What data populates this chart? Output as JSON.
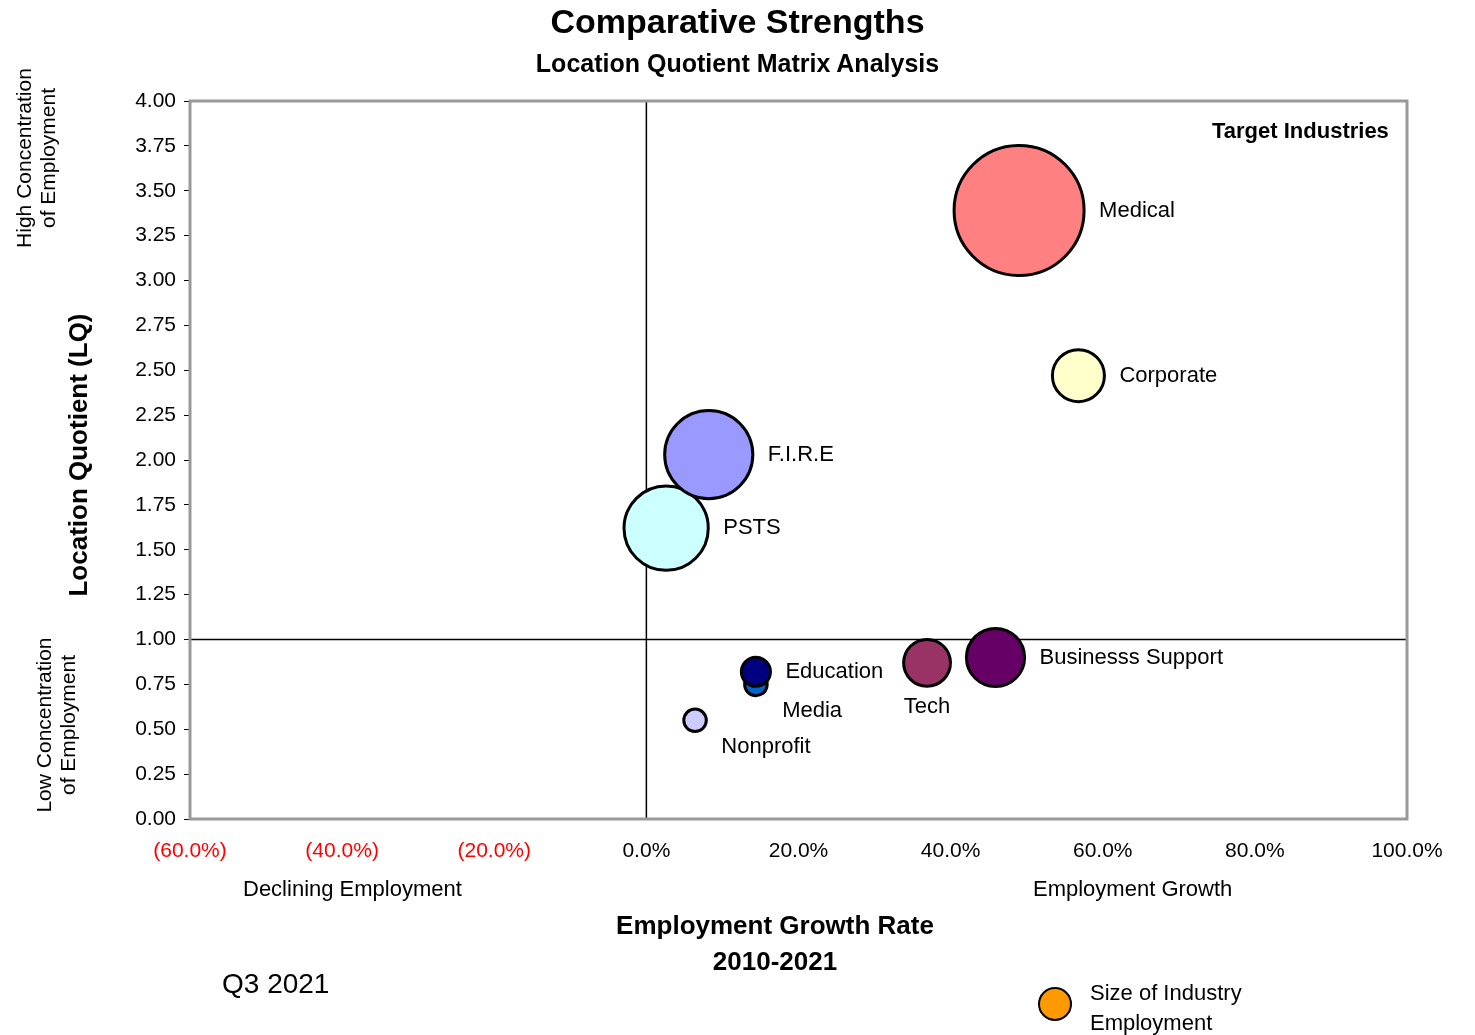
{
  "chart_data": {
    "type": "bubble",
    "title": "Comparative Strengths",
    "subtitle": "Location Quotient Matrix Analysis",
    "xlabel": "Employment Growth Rate\n2010-2021",
    "ylabel": "Location Quotient (LQ)",
    "xlim": [
      -60,
      100
    ],
    "xticks": [
      {
        "value": -60,
        "label": "(60.0%)"
      },
      {
        "value": -40,
        "label": "(40.0%)"
      },
      {
        "value": -20,
        "label": "(20.0%)"
      },
      {
        "value": 0,
        "label": "0.0%"
      },
      {
        "value": 20,
        "label": "20.0%"
      },
      {
        "value": 40,
        "label": "40.0%"
      },
      {
        "value": 60,
        "label": "60.0%"
      },
      {
        "value": 80,
        "label": "80.0%"
      },
      {
        "value": 100,
        "label": "100.0%"
      }
    ],
    "ylim": [
      0,
      4
    ],
    "yticks": [
      {
        "value": 0,
        "label": "0.00"
      },
      {
        "value": 0.25,
        "label": "0.25"
      },
      {
        "value": 0.5,
        "label": "0.50"
      },
      {
        "value": 0.75,
        "label": "0.75"
      },
      {
        "value": 1,
        "label": "1.00"
      },
      {
        "value": 1.25,
        "label": "1.25"
      },
      {
        "value": 1.5,
        "label": "1.50"
      },
      {
        "value": 1.75,
        "label": "1.75"
      },
      {
        "value": 2,
        "label": "2.00"
      },
      {
        "value": 2.25,
        "label": "2.25"
      },
      {
        "value": 2.5,
        "label": "2.50"
      },
      {
        "value": 2.75,
        "label": "2.75"
      },
      {
        "value": 3,
        "label": "3.00"
      },
      {
        "value": 3.25,
        "label": "3.25"
      },
      {
        "value": 3.5,
        "label": "3.50"
      },
      {
        "value": 3.75,
        "label": "3.75"
      },
      {
        "value": 4,
        "label": "4.00"
      }
    ],
    "grid": false,
    "legend": false,
    "ref_lines": [
      {
        "axis": "x",
        "value": 0,
        "color": "#000000"
      },
      {
        "axis": "y",
        "value": 1,
        "color": "#000000"
      }
    ],
    "series": [
      {
        "name": "Medical",
        "color": "#ff8080",
        "x": [
          49
        ],
        "values": [
          3.39
        ],
        "sizes": [
          1
        ]
      },
      {
        "name": "Corporate",
        "color": "#ffffcc",
        "x": [
          56.8
        ],
        "values": [
          2.47
        ],
        "sizes": [
          0.16
        ]
      },
      {
        "name": "F.I.R.E",
        "color": "#9999ff",
        "x": [
          8.2
        ],
        "values": [
          2.03
        ],
        "sizes": [
          0.46
        ]
      },
      {
        "name": "PSTS",
        "color": "#ccffff",
        "x": [
          2.6
        ],
        "values": [
          1.62
        ],
        "sizes": [
          0.42
        ]
      },
      {
        "name": "Businesss Support",
        "color": "#660066",
        "x": [
          45.9
        ],
        "values": [
          0.9
        ],
        "sizes": [
          0.2
        ]
      },
      {
        "name": "Tech",
        "color": "#993366",
        "x": [
          36.9
        ],
        "values": [
          0.87
        ],
        "sizes": [
          0.13
        ]
      },
      {
        "name": "Education",
        "color": "#000080",
        "x": [
          14.4
        ],
        "values": [
          0.82
        ],
        "sizes": [
          0.05
        ]
      },
      {
        "name": "Media",
        "color": "#0066cc",
        "x": [
          14.4
        ],
        "values": [
          0.75
        ],
        "sizes": [
          0.03
        ]
      },
      {
        "name": "Nonprofit",
        "color": "#ccccff",
        "x": [
          6.4
        ],
        "values": [
          0.55
        ],
        "sizes": [
          0.03
        ]
      }
    ],
    "annotations": [
      "Target Industries",
      "High Concentration\nof Employment",
      "Low Concentration\nof Employment",
      "Declining Employment",
      "Employment Growth",
      "Q3 2021",
      "Size of Industry\nEmployment"
    ]
  }
}
